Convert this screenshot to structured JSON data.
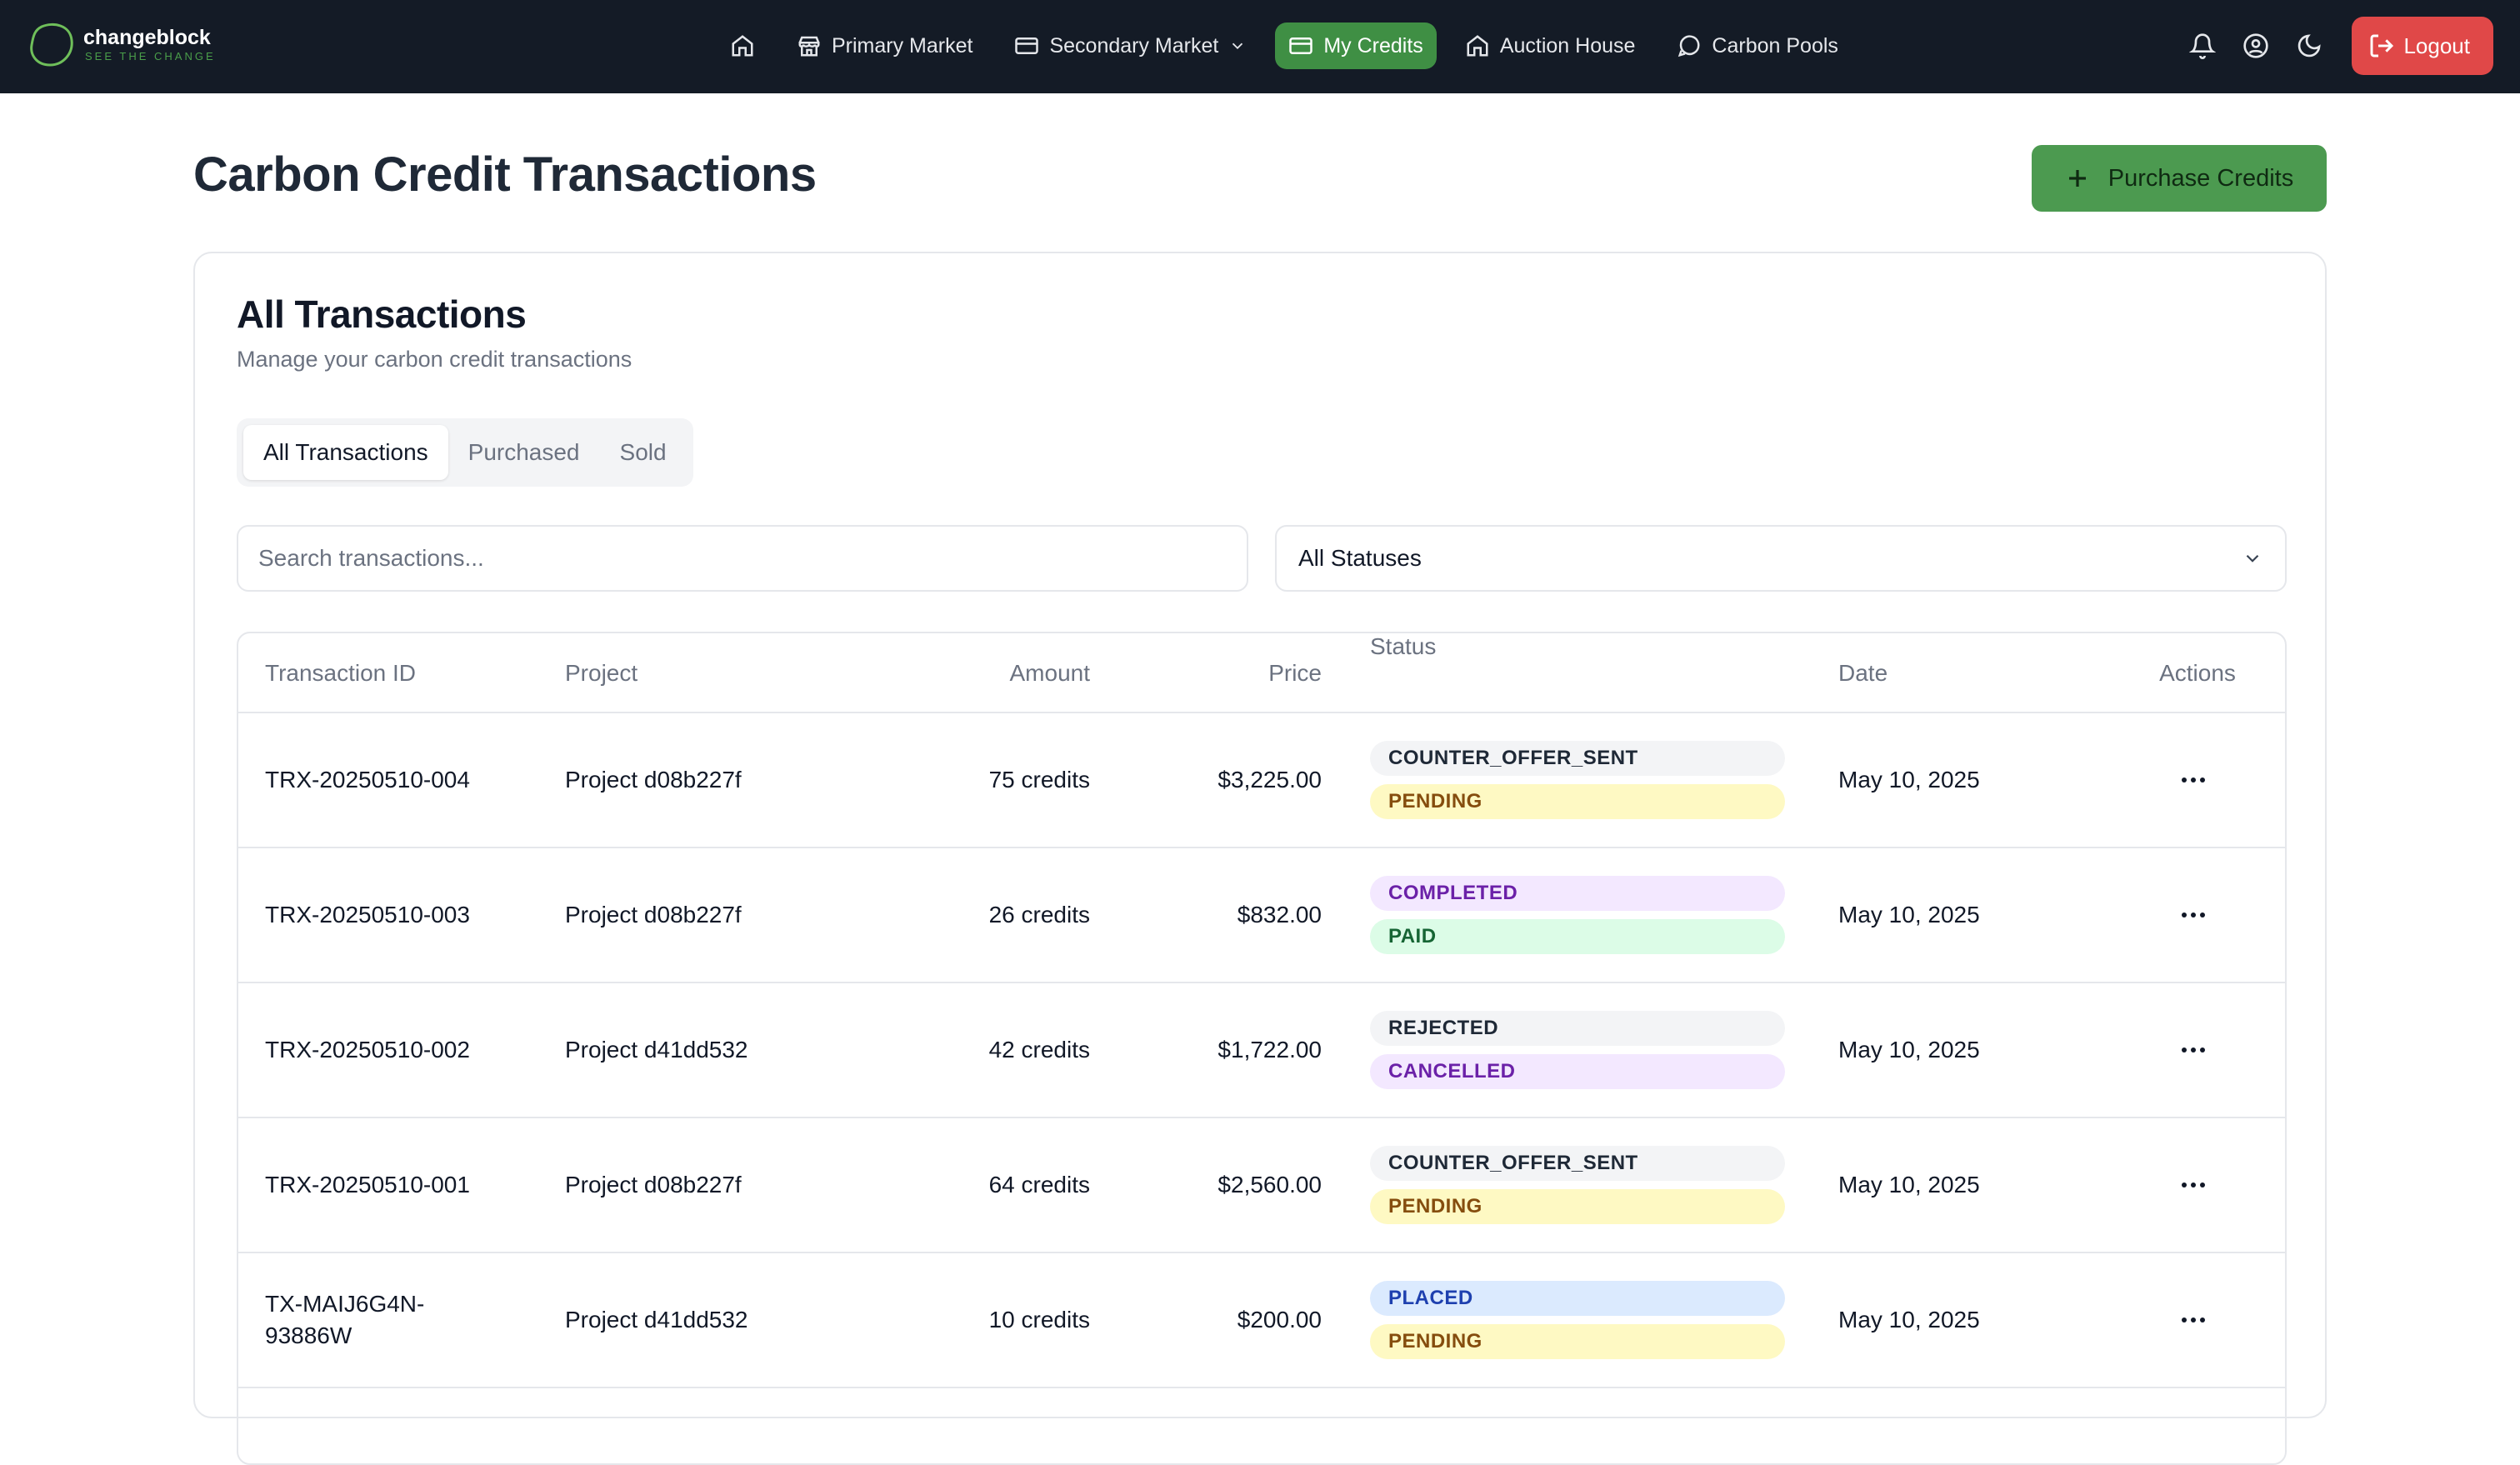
{
  "brand": {
    "name": "changeblock",
    "tagline": "SEE THE CHANGE"
  },
  "nav": {
    "items": [
      {
        "label": "Primary Market"
      },
      {
        "label": "Secondary Market"
      },
      {
        "label": "My Credits"
      },
      {
        "label": "Auction House"
      },
      {
        "label": "Carbon Pools"
      }
    ],
    "logout_label": "Logout"
  },
  "header": {
    "title": "Carbon Credit Transactions",
    "purchase_label": "Purchase Credits"
  },
  "card": {
    "title": "All Transactions",
    "subtitle": "Manage your carbon credit transactions"
  },
  "tabs": [
    "All Transactions",
    "Purchased",
    "Sold"
  ],
  "search": {
    "placeholder": "Search transactions...",
    "value": ""
  },
  "status_filter": {
    "selected": "All Statuses"
  },
  "table": {
    "headers": [
      "Transaction ID",
      "Project",
      "Amount",
      "Price",
      "Status",
      "Date",
      "Actions"
    ],
    "rows": [
      {
        "id": "TRX-20250510-004",
        "project": "Project d08b227f",
        "amount": "75 credits",
        "price": "$3,225.00",
        "status": [
          {
            "text": "COUNTER_OFFER_SENT",
            "bg": "#f3f4f6",
            "fg": "#1f2937"
          },
          {
            "text": "PENDING",
            "bg": "#fef9c3",
            "fg": "#854d0e"
          }
        ],
        "date": "May 10, 2025"
      },
      {
        "id": "TRX-20250510-003",
        "project": "Project d08b227f",
        "amount": "26 credits",
        "price": "$832.00",
        "status": [
          {
            "text": "COMPLETED",
            "bg": "#f3e8ff",
            "fg": "#6b21a8"
          },
          {
            "text": "PAID",
            "bg": "#dcfce7",
            "fg": "#166534"
          }
        ],
        "date": "May 10, 2025"
      },
      {
        "id": "TRX-20250510-002",
        "project": "Project d41dd532",
        "amount": "42 credits",
        "price": "$1,722.00",
        "status": [
          {
            "text": "REJECTED",
            "bg": "#f3f4f6",
            "fg": "#1f2937"
          },
          {
            "text": "CANCELLED",
            "bg": "#f3e8ff",
            "fg": "#6b21a8"
          }
        ],
        "date": "May 10, 2025"
      },
      {
        "id": "TRX-20250510-001",
        "project": "Project d08b227f",
        "amount": "64 credits",
        "price": "$2,560.00",
        "status": [
          {
            "text": "COUNTER_OFFER_SENT",
            "bg": "#f3f4f6",
            "fg": "#1f2937"
          },
          {
            "text": "PENDING",
            "bg": "#fef9c3",
            "fg": "#854d0e"
          }
        ],
        "date": "May 10, 2025"
      },
      {
        "id": "TX-MAIJ6G4N-93886W",
        "project": "Project d41dd532",
        "amount": "10 credits",
        "price": "$200.00",
        "status": [
          {
            "text": "PLACED",
            "bg": "#dbeafe",
            "fg": "#1e40af"
          },
          {
            "text": "PENDING",
            "bg": "#fef9c3",
            "fg": "#854d0e"
          }
        ],
        "date": "May 10, 2025"
      }
    ]
  },
  "colors": {
    "navbar": "#141b26",
    "accent": "#4c9a50",
    "logout": "#e04848"
  },
  "icons": {
    "home": "home-icon",
    "store": "store-icon",
    "card": "credit-card-icon",
    "bell": "bell-icon",
    "user": "user-circle-icon",
    "moon": "moon-icon",
    "logout": "logout-icon",
    "more": "more-horizontal-icon"
  }
}
